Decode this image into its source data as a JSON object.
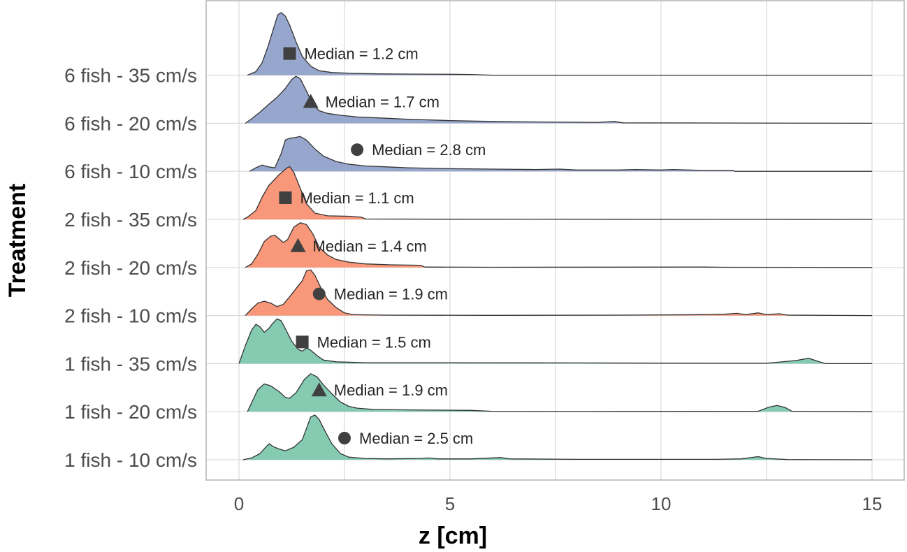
{
  "chart_data": {
    "type": "ridgeline",
    "title": "",
    "xlabel": "z [cm]",
    "ylabel": "Treatment",
    "xlim": [
      -0.75,
      15.5
    ],
    "x_ticks": [
      0,
      5,
      10,
      15
    ],
    "grid": true,
    "legend": "none",
    "colors": {
      "6 fish": "#97a6cc",
      "2 fish": "#f8977a",
      "1 fish": "#84cbb2",
      "median_marker": "#404040",
      "ridge_line": "#333333"
    },
    "series": [
      {
        "label": "1 fish - 10 cm/s",
        "group": "1 fish",
        "median": 2.5,
        "median_text": "Median = 2.5 cm",
        "marker": "circle",
        "density": [
          [
            0.1,
            0
          ],
          [
            0.3,
            0.04
          ],
          [
            0.5,
            0.14
          ],
          [
            0.65,
            0.3
          ],
          [
            0.72,
            0.36
          ],
          [
            0.8,
            0.3
          ],
          [
            0.95,
            0.24
          ],
          [
            1.1,
            0.2
          ],
          [
            1.3,
            0.28
          ],
          [
            1.5,
            0.45
          ],
          [
            1.6,
            0.7
          ],
          [
            1.7,
            0.96
          ],
          [
            1.8,
            1.0
          ],
          [
            1.9,
            0.9
          ],
          [
            2.05,
            0.62
          ],
          [
            2.2,
            0.36
          ],
          [
            2.4,
            0.14
          ],
          [
            2.6,
            0.06
          ],
          [
            3.0,
            0.03
          ],
          [
            3.5,
            0.02
          ],
          [
            4.3,
            0.03
          ],
          [
            4.5,
            0.04
          ],
          [
            4.7,
            0.02
          ],
          [
            5.5,
            0.02
          ],
          [
            6.2,
            0.05
          ],
          [
            6.4,
            0.02
          ],
          [
            8.0,
            0.01
          ],
          [
            11.3,
            0.01
          ],
          [
            11.9,
            0.02
          ],
          [
            12.3,
            0.07
          ],
          [
            12.5,
            0.03
          ],
          [
            13.0,
            0.005
          ],
          [
            15.0,
            0
          ]
        ]
      },
      {
        "label": "1 fish - 20 cm/s",
        "group": "1 fish",
        "median": 1.9,
        "median_text": "Median = 1.9 cm",
        "marker": "triangle",
        "density": [
          [
            0.2,
            0
          ],
          [
            0.3,
            0.2
          ],
          [
            0.45,
            0.5
          ],
          [
            0.6,
            0.62
          ],
          [
            0.75,
            0.58
          ],
          [
            0.95,
            0.45
          ],
          [
            1.1,
            0.32
          ],
          [
            1.2,
            0.3
          ],
          [
            1.35,
            0.42
          ],
          [
            1.55,
            0.72
          ],
          [
            1.7,
            0.85
          ],
          [
            1.85,
            0.78
          ],
          [
            2.0,
            0.6
          ],
          [
            2.2,
            0.4
          ],
          [
            2.4,
            0.22
          ],
          [
            2.6,
            0.12
          ],
          [
            2.8,
            0.08
          ],
          [
            3.2,
            0.05
          ],
          [
            4.0,
            0.04
          ],
          [
            5.5,
            0.03
          ],
          [
            6.0,
            0.01
          ],
          [
            8.0,
            0.005
          ],
          [
            12.3,
            0.01
          ],
          [
            12.55,
            0.1
          ],
          [
            12.75,
            0.14
          ],
          [
            12.95,
            0.09
          ],
          [
            13.1,
            0.01
          ],
          [
            15.0,
            0
          ]
        ]
      },
      {
        "label": "1 fish - 35 cm/s",
        "group": "1 fish",
        "median": 1.5,
        "median_text": "Median = 1.5 cm",
        "marker": "square",
        "density": [
          [
            0,
            0
          ],
          [
            0.15,
            0.4
          ],
          [
            0.3,
            0.75
          ],
          [
            0.4,
            0.88
          ],
          [
            0.5,
            0.82
          ],
          [
            0.6,
            0.7
          ],
          [
            0.7,
            0.78
          ],
          [
            0.8,
            0.9
          ],
          [
            0.9,
            1.0
          ],
          [
            1.0,
            0.96
          ],
          [
            1.1,
            0.78
          ],
          [
            1.25,
            0.5
          ],
          [
            1.4,
            0.32
          ],
          [
            1.5,
            0.28
          ],
          [
            1.6,
            0.35
          ],
          [
            1.7,
            0.3
          ],
          [
            1.85,
            0.18
          ],
          [
            2.0,
            0.08
          ],
          [
            2.3,
            0.04
          ],
          [
            3.0,
            0.02
          ],
          [
            5.0,
            0.02
          ],
          [
            8.0,
            0.015
          ],
          [
            11.0,
            0.01
          ],
          [
            12.5,
            0.01
          ],
          [
            12.75,
            0.03
          ],
          [
            13.2,
            0.07
          ],
          [
            13.5,
            0.12
          ],
          [
            13.75,
            0.04
          ],
          [
            13.9,
            0
          ],
          [
            15.0,
            0
          ]
        ]
      },
      {
        "label": "2 fish - 10 cm/s",
        "group": "2 fish",
        "median": 1.9,
        "median_text": "Median = 1.9 cm",
        "marker": "circle",
        "density": [
          [
            0.15,
            0
          ],
          [
            0.3,
            0.15
          ],
          [
            0.45,
            0.28
          ],
          [
            0.6,
            0.32
          ],
          [
            0.75,
            0.28
          ],
          [
            0.9,
            0.2
          ],
          [
            1.05,
            0.25
          ],
          [
            1.2,
            0.42
          ],
          [
            1.35,
            0.6
          ],
          [
            1.5,
            0.78
          ],
          [
            1.6,
            1.0
          ],
          [
            1.7,
            1.02
          ],
          [
            1.8,
            0.9
          ],
          [
            1.95,
            0.6
          ],
          [
            2.1,
            0.36
          ],
          [
            2.3,
            0.18
          ],
          [
            2.5,
            0.06
          ],
          [
            2.7,
            0.02
          ],
          [
            3.5,
            0.01
          ],
          [
            6.0,
            0.005
          ],
          [
            9.0,
            0.01
          ],
          [
            11.0,
            0.02
          ],
          [
            11.5,
            0.03
          ],
          [
            11.8,
            0.05
          ],
          [
            12.0,
            0.02
          ],
          [
            12.3,
            0.06
          ],
          [
            12.5,
            0.02
          ],
          [
            12.8,
            0.04
          ],
          [
            13.0,
            0.01
          ],
          [
            15.0,
            0
          ]
        ]
      },
      {
        "label": "2 fish - 20 cm/s",
        "group": "2 fish",
        "median": 1.4,
        "median_text": "Median = 1.4 cm",
        "marker": "triangle",
        "density": [
          [
            0.15,
            0
          ],
          [
            0.3,
            0.08
          ],
          [
            0.45,
            0.3
          ],
          [
            0.6,
            0.58
          ],
          [
            0.75,
            0.7
          ],
          [
            0.85,
            0.72
          ],
          [
            0.95,
            0.64
          ],
          [
            1.05,
            0.56
          ],
          [
            1.15,
            0.62
          ],
          [
            1.3,
            0.9
          ],
          [
            1.45,
            1.0
          ],
          [
            1.6,
            0.96
          ],
          [
            1.75,
            0.75
          ],
          [
            1.9,
            0.45
          ],
          [
            2.1,
            0.28
          ],
          [
            2.3,
            0.18
          ],
          [
            2.6,
            0.12
          ],
          [
            3.0,
            0.08
          ],
          [
            3.6,
            0.06
          ],
          [
            4.3,
            0.05
          ],
          [
            4.4,
            0.01
          ],
          [
            6.0,
            0.005
          ],
          [
            11.0,
            0.01
          ],
          [
            11.5,
            0.005
          ],
          [
            15.0,
            0
          ]
        ]
      },
      {
        "label": "2 fish - 35 cm/s",
        "group": "2 fish",
        "median": 1.1,
        "median_text": "Median = 1.1 cm",
        "marker": "square",
        "density": [
          [
            0.1,
            0
          ],
          [
            0.2,
            0.05
          ],
          [
            0.4,
            0.2
          ],
          [
            0.55,
            0.5
          ],
          [
            0.7,
            0.75
          ],
          [
            0.85,
            0.9
          ],
          [
            0.95,
            1.0
          ],
          [
            1.05,
            1.08
          ],
          [
            1.15,
            1.16
          ],
          [
            1.2,
            1.18
          ],
          [
            1.3,
            1.05
          ],
          [
            1.45,
            0.7
          ],
          [
            1.6,
            0.35
          ],
          [
            1.8,
            0.14
          ],
          [
            2.1,
            0.08
          ],
          [
            2.6,
            0.07
          ],
          [
            2.9,
            0.05
          ],
          [
            3.0,
            0.01
          ],
          [
            5.0,
            0.005
          ],
          [
            15.0,
            0
          ]
        ]
      },
      {
        "label": "6 fish - 10 cm/s",
        "group": "6 fish",
        "median": 2.8,
        "median_text": "Median = 2.8 cm",
        "marker": "circle",
        "density": [
          [
            0.25,
            0
          ],
          [
            0.4,
            0.08
          ],
          [
            0.55,
            0.14
          ],
          [
            0.7,
            0.1
          ],
          [
            0.85,
            0.08
          ],
          [
            1.0,
            0.4
          ],
          [
            1.1,
            0.7
          ],
          [
            1.2,
            0.74
          ],
          [
            1.3,
            0.75
          ],
          [
            1.45,
            0.78
          ],
          [
            1.6,
            0.7
          ],
          [
            1.8,
            0.5
          ],
          [
            2.0,
            0.34
          ],
          [
            2.3,
            0.22
          ],
          [
            2.6,
            0.16
          ],
          [
            3.0,
            0.12
          ],
          [
            3.5,
            0.1
          ],
          [
            4.0,
            0.08
          ],
          [
            5.0,
            0.06
          ],
          [
            6.0,
            0.05
          ],
          [
            7.0,
            0.04
          ],
          [
            7.6,
            0.05
          ],
          [
            8.0,
            0.03
          ],
          [
            9.0,
            0.03
          ],
          [
            9.4,
            0.04
          ],
          [
            10.0,
            0.03
          ],
          [
            10.3,
            0.04
          ],
          [
            11.0,
            0.02
          ],
          [
            11.7,
            0.02
          ],
          [
            11.75,
            0
          ],
          [
            15.0,
            0
          ]
        ]
      },
      {
        "label": "6 fish - 20 cm/s",
        "group": "6 fish",
        "median": 1.7,
        "median_text": "Median = 1.7 cm",
        "marker": "triangle",
        "density": [
          [
            0.15,
            0
          ],
          [
            0.3,
            0.1
          ],
          [
            0.5,
            0.25
          ],
          [
            0.7,
            0.42
          ],
          [
            0.9,
            0.58
          ],
          [
            1.1,
            0.78
          ],
          [
            1.25,
            0.98
          ],
          [
            1.35,
            1.05
          ],
          [
            1.45,
            1.0
          ],
          [
            1.6,
            0.72
          ],
          [
            1.75,
            0.42
          ],
          [
            1.9,
            0.28
          ],
          [
            2.1,
            0.22
          ],
          [
            2.4,
            0.18
          ],
          [
            2.8,
            0.14
          ],
          [
            3.3,
            0.12
          ],
          [
            4.0,
            0.09
          ],
          [
            5.0,
            0.06
          ],
          [
            6.0,
            0.04
          ],
          [
            7.0,
            0.03
          ],
          [
            8.5,
            0.02
          ],
          [
            8.9,
            0.04
          ],
          [
            9.1,
            0.01
          ],
          [
            12.0,
            0.005
          ],
          [
            15.0,
            0
          ]
        ]
      },
      {
        "label": "6 fish - 35 cm/s",
        "group": "6 fish",
        "median": 1.2,
        "median_text": "Median = 1.2 cm",
        "marker": "square",
        "density": [
          [
            0.2,
            0
          ],
          [
            0.4,
            0.08
          ],
          [
            0.55,
            0.28
          ],
          [
            0.7,
            0.68
          ],
          [
            0.82,
            1.05
          ],
          [
            0.92,
            1.35
          ],
          [
            1.0,
            1.4
          ],
          [
            1.1,
            1.32
          ],
          [
            1.2,
            1.12
          ],
          [
            1.35,
            0.75
          ],
          [
            1.5,
            0.42
          ],
          [
            1.7,
            0.2
          ],
          [
            1.9,
            0.1
          ],
          [
            2.2,
            0.06
          ],
          [
            2.7,
            0.04
          ],
          [
            3.3,
            0.03
          ],
          [
            4.0,
            0.025
          ],
          [
            5.0,
            0.02
          ],
          [
            5.5,
            0.015
          ],
          [
            6.0,
            0
          ],
          [
            15.0,
            0
          ]
        ]
      }
    ]
  }
}
